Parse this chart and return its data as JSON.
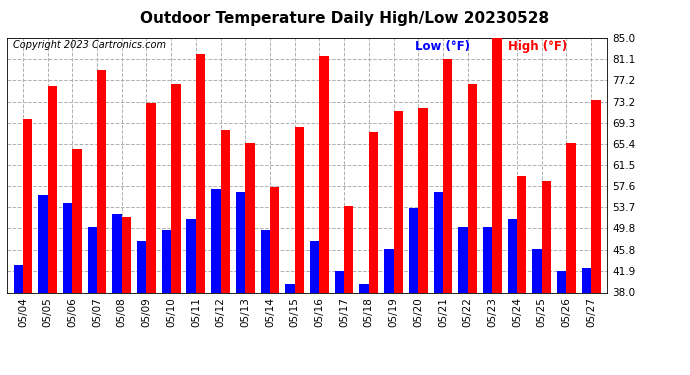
{
  "title": "Outdoor Temperature Daily High/Low 20230528",
  "copyright": "Copyright 2023 Cartronics.com",
  "legend_low": "Low",
  "legend_high": "High",
  "legend_unit": "(°F)",
  "ylim": [
    38.0,
    85.0
  ],
  "yticks": [
    38.0,
    41.9,
    45.8,
    49.8,
    53.7,
    57.6,
    61.5,
    65.4,
    69.3,
    73.2,
    77.2,
    81.1,
    85.0
  ],
  "dates": [
    "05/04",
    "05/05",
    "05/06",
    "05/07",
    "05/08",
    "05/09",
    "05/10",
    "05/11",
    "05/12",
    "05/13",
    "05/14",
    "05/15",
    "05/16",
    "05/17",
    "05/18",
    "05/19",
    "05/20",
    "05/21",
    "05/22",
    "05/23",
    "05/24",
    "05/25",
    "05/26",
    "05/27"
  ],
  "high_values": [
    70.0,
    76.0,
    64.5,
    79.0,
    52.0,
    73.0,
    76.5,
    82.0,
    68.0,
    65.5,
    57.5,
    68.5,
    81.5,
    54.0,
    67.5,
    71.5,
    72.0,
    81.0,
    76.5,
    85.0,
    59.5,
    58.5,
    65.5,
    73.5
  ],
  "low_values": [
    43.0,
    56.0,
    54.5,
    50.0,
    52.5,
    47.5,
    49.5,
    51.5,
    57.0,
    56.5,
    49.5,
    39.5,
    47.5,
    42.0,
    39.5,
    46.0,
    53.5,
    56.5,
    50.0,
    50.0,
    51.5,
    46.0,
    42.0,
    42.5
  ],
  "high_color": "#ff0000",
  "low_color": "#0000ff",
  "background_color": "#ffffff",
  "grid_color": "#b0b0b0",
  "title_fontsize": 11,
  "copyright_fontsize": 7,
  "tick_fontsize": 7.5,
  "legend_fontsize": 8.5,
  "bar_width": 0.38
}
